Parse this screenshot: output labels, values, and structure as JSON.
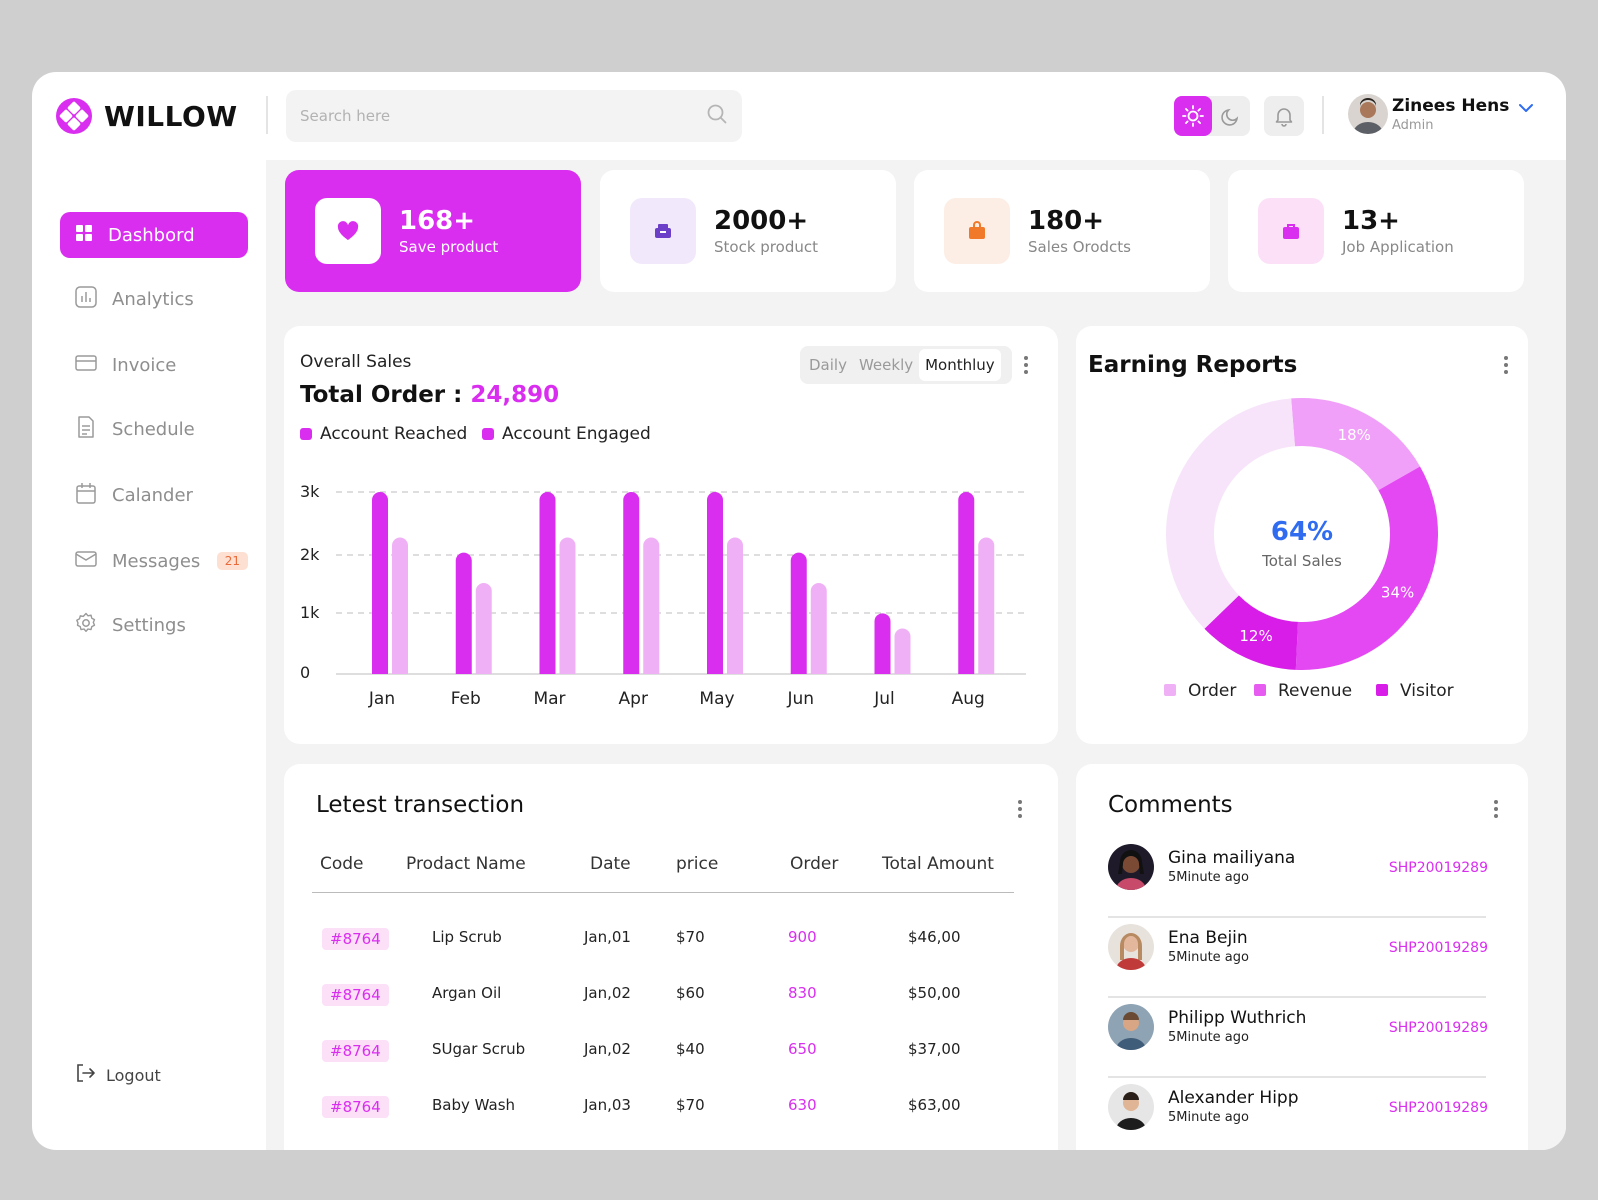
{
  "brand": {
    "name": "WILLOW"
  },
  "search": {
    "placeholder": "Search here"
  },
  "user": {
    "name": "Zinees Hens",
    "role": "Admin"
  },
  "sidebar": {
    "items": [
      {
        "label": "Dashbord"
      },
      {
        "label": "Analytics"
      },
      {
        "label": "Invoice"
      },
      {
        "label": "Schedule"
      },
      {
        "label": "Calander"
      },
      {
        "label": "Messages",
        "badge": "21"
      },
      {
        "label": "Settings"
      }
    ],
    "logout": "Logout"
  },
  "stats": [
    {
      "value": "168+",
      "label": "Save product",
      "color": "#d92ef0"
    },
    {
      "value": "2000+",
      "label": "Stock product",
      "color": "#6b3fc7"
    },
    {
      "value": "180+",
      "label": "Sales Orodcts",
      "color": "#f07a2a"
    },
    {
      "value": "13+",
      "label": "Job Application",
      "color": "#d92ef0"
    }
  ],
  "sales": {
    "subtitle": "Overall Sales",
    "total_label": "Total Order :",
    "total_value": "24,890",
    "tabs": [
      "Daily",
      "Weekly",
      "Monthluy"
    ],
    "active_tab": "Monthluy"
  },
  "chart_data": [
    {
      "type": "bar",
      "categories": [
        "Jan",
        "Feb",
        "Mar",
        "Apr",
        "May",
        "Jun",
        "Jul",
        "Aug"
      ],
      "series": [
        {
          "name": "Account Reached",
          "color": "#d92ef0",
          "values": [
            3000,
            2000,
            3000,
            3000,
            3000,
            2000,
            1000,
            3000
          ]
        },
        {
          "name": "Account Engaged",
          "color": "#f0b0f5",
          "values": [
            2250,
            1500,
            2250,
            2250,
            2250,
            1500,
            750,
            2250
          ]
        }
      ],
      "yticks": [
        "0",
        "1k",
        "2k",
        "3k"
      ],
      "ylim": [
        0,
        3000
      ],
      "grid": true
    },
    {
      "type": "pie",
      "title": "Earning Reports",
      "center_value": "64%",
      "center_label": "Total Sales",
      "slices": [
        {
          "label": "18%",
          "value": 18,
          "color": "#f0a0f8"
        },
        {
          "label": "34%",
          "value": 34,
          "color": "#e448f2"
        },
        {
          "label": "12%",
          "value": 12,
          "color": "#d91de8"
        },
        {
          "label": "",
          "value": 36,
          "color": "#f7e4fa"
        }
      ],
      "legend": [
        {
          "name": "Order",
          "color": "#f0b0f5"
        },
        {
          "name": "Revenue",
          "color": "#e65cf0"
        },
        {
          "name": "Visitor",
          "color": "#d91de8"
        }
      ]
    }
  ],
  "transactions": {
    "title": "Letest transection",
    "headers": [
      "Code",
      "Prodact Name",
      "Date",
      "price",
      "Order",
      "Total Amount"
    ],
    "rows": [
      {
        "code": "#8764",
        "name": "Lip Scrub",
        "date": "Jan,01",
        "price": "$70",
        "order": "900",
        "total": "$46,00"
      },
      {
        "code": "#8764",
        "name": "Argan Oil",
        "date": "Jan,02",
        "price": "$60",
        "order": "830",
        "total": "$50,00"
      },
      {
        "code": "#8764",
        "name": "SUgar Scrub",
        "date": "Jan,02",
        "price": "$40",
        "order": "650",
        "total": "$37,00"
      },
      {
        "code": "#8764",
        "name": "Baby Wash",
        "date": "Jan,03",
        "price": "$70",
        "order": "630",
        "total": "$63,00"
      }
    ]
  },
  "comments": {
    "title": "Comments",
    "items": [
      {
        "name": "Gina mailiyana",
        "time": "5Minute ago",
        "code": "SHP20019289"
      },
      {
        "name": "Ena Bejin",
        "time": "5Minute ago",
        "code": "SHP20019289"
      },
      {
        "name": "Philipp Wuthrich",
        "time": "5Minute ago",
        "code": "SHP20019289"
      },
      {
        "name": "Alexander Hipp",
        "time": "5Minute ago",
        "code": "SHP20019289"
      }
    ]
  },
  "icons": [
    "logo-icon",
    "search-icon",
    "sun-icon",
    "moon-icon",
    "bell-icon",
    "chevron-down-icon",
    "dashboard-icon",
    "analytics-icon",
    "invoice-icon",
    "schedule-icon",
    "calendar-icon",
    "messages-icon",
    "settings-icon",
    "logout-icon",
    "heart-icon",
    "stock-icon",
    "bag-icon",
    "briefcase-icon",
    "more-icon"
  ]
}
